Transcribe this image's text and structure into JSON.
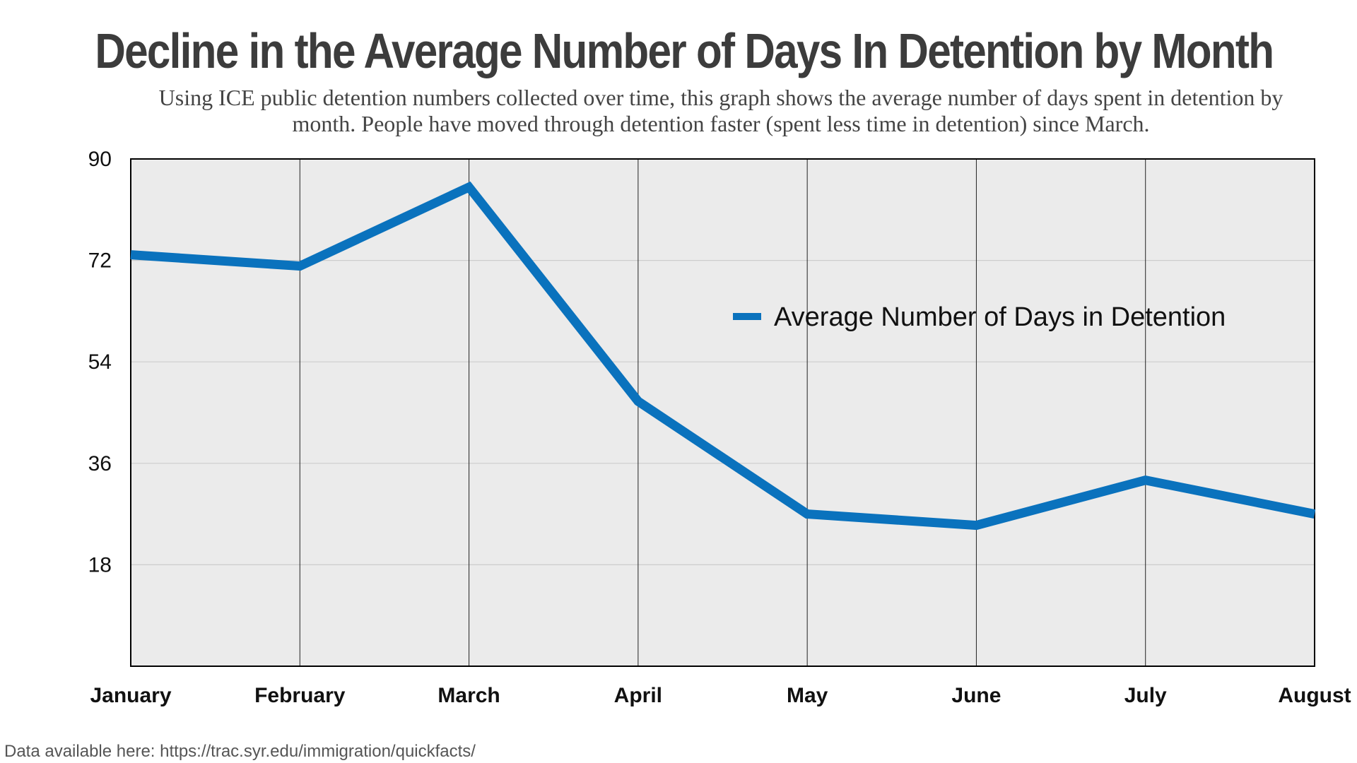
{
  "chart_data": {
    "type": "line",
    "title": "Decline in the Average Number of Days In Detention by Month",
    "subtitle": "Using ICE public detention numbers collected over time, this graph shows the average number of days spent in detention by month. People have moved through detention faster (spent less time in detention) since March.",
    "categories": [
      "January",
      "February",
      "March",
      "April",
      "May",
      "June",
      "July",
      "August"
    ],
    "series": [
      {
        "name": "Average Number of Days in Detention",
        "values": [
          73,
          71,
          85,
          47,
          27,
          25,
          33,
          27
        ],
        "color": "#0a72bd"
      }
    ],
    "ylim": [
      0,
      90
    ],
    "yticks": [
      "18",
      "36",
      "54",
      "72",
      "90"
    ],
    "xlabel": "",
    "ylabel": "",
    "grid": true,
    "legend_position": "upper-right",
    "plot_background": "#ebebeb",
    "gridline_color": "#cccccc"
  },
  "source_note": "Data available here: https://trac.syr.edu/immigration/quickfacts/"
}
